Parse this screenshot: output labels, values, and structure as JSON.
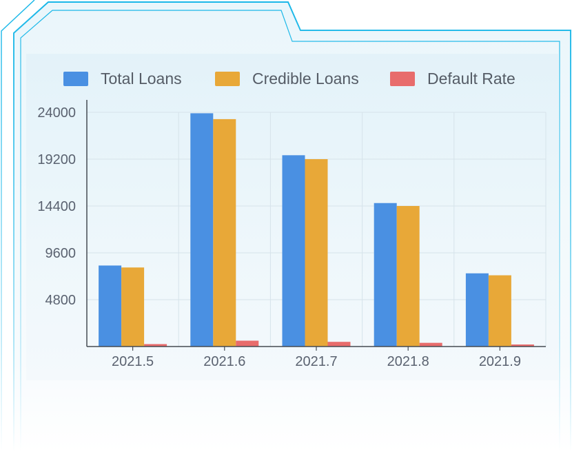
{
  "chart_data": {
    "type": "bar",
    "categories": [
      "2021.5",
      "2021.6",
      "2021.7",
      "2021.8",
      "2021.9"
    ],
    "series": [
      {
        "name": "Total Loans",
        "color": "#4a90e2",
        "values": [
          8300,
          23900,
          19600,
          14700,
          7500
        ]
      },
      {
        "name": "Credible Loans",
        "color": "#e8a838",
        "values": [
          8100,
          23300,
          19200,
          14400,
          7300
        ]
      },
      {
        "name": "Default Rate",
        "color": "#e86c6c",
        "values": [
          250,
          600,
          480,
          380,
          210
        ]
      }
    ],
    "yticks": [
      "4800",
      "9600",
      "14400",
      "19200",
      "24000"
    ],
    "ylim": [
      0,
      24000
    ],
    "grid": true,
    "legend_position": "top"
  }
}
